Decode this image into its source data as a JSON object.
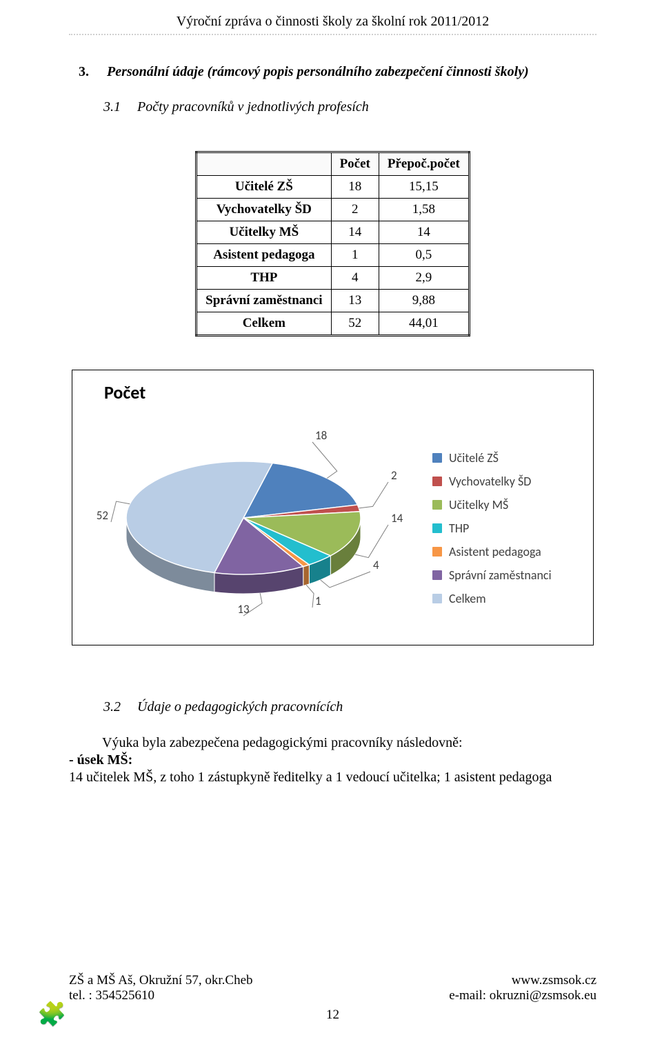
{
  "running_header": "Výroční zpráva o činnosti školy za školní rok 2011/2012",
  "section3": {
    "num": "3.",
    "title": "Personální údaje (rámcový popis personálního zabezpečení činnosti školy)"
  },
  "section31": {
    "num": "3.1",
    "title": "Počty pracovníků v jednotlivých profesích"
  },
  "table": {
    "col_headers": [
      "",
      "Počet",
      "Přepoč.počet"
    ],
    "rows": [
      {
        "label": "Učitelé  ZŠ",
        "count": "18",
        "fte": "15,15"
      },
      {
        "label": "Vychovatelky ŠD",
        "count": "2",
        "fte": "1,58"
      },
      {
        "label": "Učitelky MŠ",
        "count": "14",
        "fte": "14"
      },
      {
        "label": "Asistent pedagoga",
        "count": "1",
        "fte": "0,5"
      },
      {
        "label": "THP",
        "count": "4",
        "fte": "2,9"
      },
      {
        "label": "Správní zaměstnanci",
        "count": "13",
        "fte": "9,88"
      },
      {
        "label": "Celkem",
        "count": "52",
        "fte": "44,01"
      }
    ]
  },
  "chart": {
    "title": "Počet",
    "type": "pie-3d",
    "series": [
      {
        "label": "Učitelé  ZŠ",
        "value": 18,
        "color": "#4f81bd"
      },
      {
        "label": "Vychovatelky ŠD",
        "value": 2,
        "color": "#c0504d"
      },
      {
        "label": "Učitelky MŠ",
        "value": 14,
        "color": "#9bbb59"
      },
      {
        "label": "THP",
        "value": 4,
        "color": "#23bece"
      },
      {
        "label": "Asistent pedagoga",
        "value": 1,
        "color": "#f79646"
      },
      {
        "label": "Správní zaměstnanci",
        "value": 13,
        "color": "#8064a2"
      },
      {
        "label": "Celkem",
        "value": 52,
        "color": "#b9cde5"
      }
    ],
    "label_fontsize": 17,
    "label_color": "#404040",
    "title_fontsize": 26,
    "title_color": "#000000",
    "background_color": "#ffffff"
  },
  "section32": {
    "num": "3.2",
    "title": "Údaje o pedagogických pracovnících"
  },
  "body32_line1": "Výuka byla zabezpečena pedagogickými pracovníky následovně:",
  "body32_line2": "- úsek MŠ:",
  "body32_line3": "14 učitelek MŠ, z toho 1 zástupkyně ředitelky a 1 vedoucí učitelka; 1 asistent pedagoga",
  "footer": {
    "left1": "ZŠ a MŠ Aš, Okružní 57, okr.Cheb",
    "right1": "www.zsmsok.cz",
    "left2": "tel. : 354525610",
    "right2": "e-mail: okruzni@zsmsok.eu",
    "page_num": "12"
  }
}
